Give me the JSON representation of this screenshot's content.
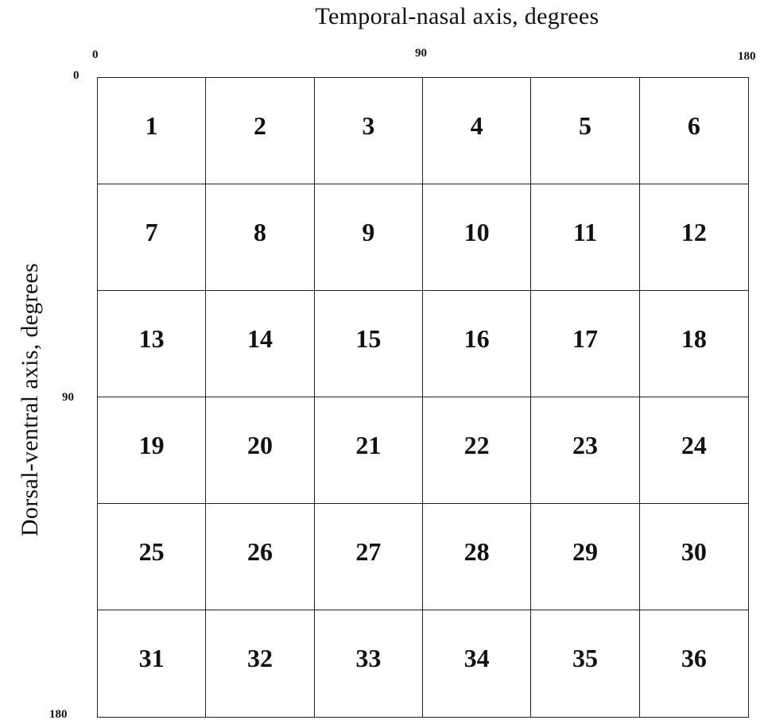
{
  "axes": {
    "x_title": "Temporal-nasal axis, degrees",
    "y_title": "Dorsal-ventral axis, degrees",
    "x_ticks": [
      "0",
      "90",
      "180"
    ],
    "y_ticks": [
      "0",
      "90",
      "180"
    ]
  },
  "grid": {
    "rows": 6,
    "columns": 6,
    "cells": [
      "1",
      "2",
      "3",
      "4",
      "5",
      "6",
      "7",
      "8",
      "9",
      "10",
      "11",
      "12",
      "13",
      "14",
      "15",
      "16",
      "17",
      "18",
      "19",
      "20",
      "21",
      "22",
      "23",
      "24",
      "25",
      "26",
      "27",
      "28",
      "29",
      "30",
      "31",
      "32",
      "33",
      "34",
      "35",
      "36"
    ]
  },
  "colors": {
    "line": "#222222",
    "text": "#111111",
    "background": "#ffffff"
  }
}
